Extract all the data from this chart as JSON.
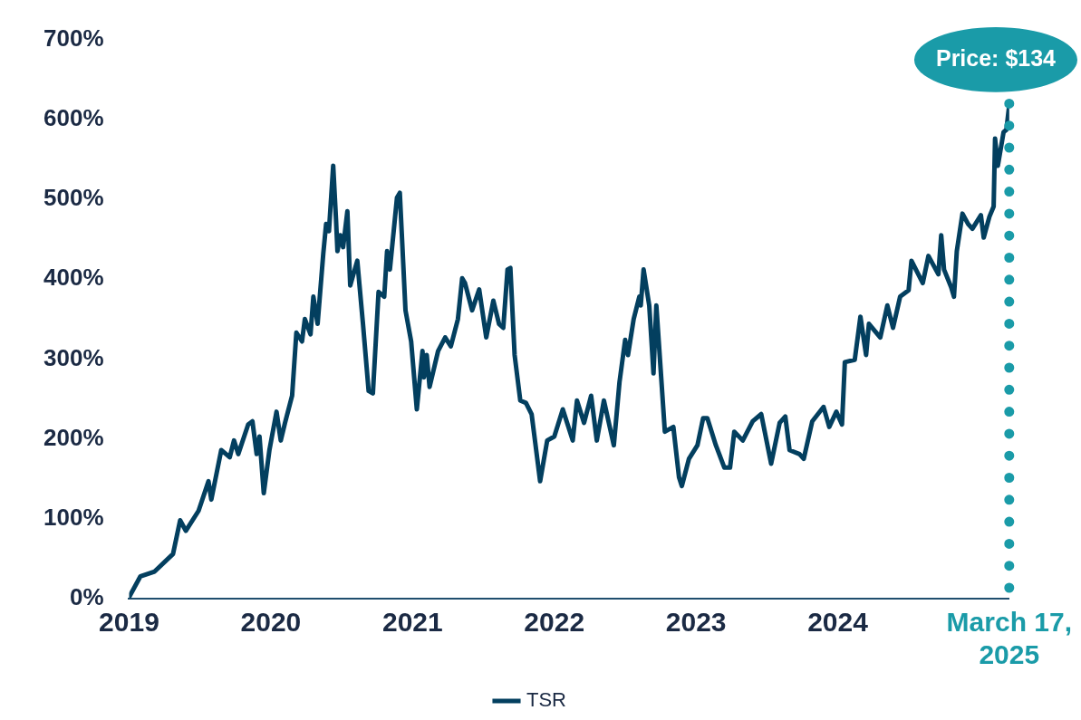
{
  "chart_data": {
    "type": "line",
    "x": [
      2019.0,
      2019.08,
      2019.18,
      2019.31,
      2019.36,
      2019.4,
      2019.49,
      2019.56,
      2019.58,
      2019.65,
      2019.71,
      2019.74,
      2019.77,
      2019.84,
      2019.87,
      2019.9,
      2019.92,
      2019.95,
      2019.99,
      2020.04,
      2020.07,
      2020.1,
      2020.15,
      2020.18,
      2020.22,
      2020.24,
      2020.28,
      2020.3,
      2020.33,
      2020.37,
      2020.39,
      2020.41,
      2020.44,
      2020.46,
      2020.47,
      2020.49,
      2020.51,
      2020.54,
      2020.56,
      2020.61,
      2020.65,
      2020.69,
      2020.72,
      2020.76,
      2020.8,
      2020.82,
      2020.84,
      2020.89,
      2020.91,
      2020.95,
      2020.99,
      2021.03,
      2021.07,
      2021.08,
      2021.1,
      2021.12,
      2021.18,
      2021.23,
      2021.27,
      2021.32,
      2021.35,
      2021.37,
      2021.42,
      2021.47,
      2021.52,
      2021.57,
      2021.61,
      2021.64,
      2021.67,
      2021.69,
      2021.72,
      2021.76,
      2021.8,
      2021.84,
      2021.9,
      2021.95,
      2022.0,
      2022.06,
      2022.13,
      2022.16,
      2022.21,
      2022.26,
      2022.3,
      2022.35,
      2022.42,
      2022.46,
      2022.5,
      2022.52,
      2022.56,
      2022.6,
      2022.61,
      2022.63,
      2022.67,
      2022.7,
      2022.72,
      2022.75,
      2022.78,
      2022.84,
      2022.88,
      2022.9,
      2022.95,
      2023.01,
      2023.05,
      2023.08,
      2023.14,
      2023.2,
      2023.24,
      2023.27,
      2023.33,
      2023.4,
      2023.46,
      2023.53,
      2023.59,
      2023.63,
      2023.66,
      2023.73,
      2023.76,
      2023.82,
      2023.9,
      2023.94,
      2023.99,
      2024.03,
      2024.05,
      2024.12,
      2024.16,
      2024.2,
      2024.22,
      2024.3,
      2024.35,
      2024.39,
      2024.44,
      2024.5,
      2024.52,
      2024.6,
      2024.64,
      2024.71,
      2024.73,
      2024.75,
      2024.8,
      2024.82,
      2024.84,
      2024.88,
      2024.92,
      2024.95,
      2025.01,
      2025.03,
      2025.07,
      2025.1,
      2025.11,
      2025.13,
      2025.17,
      2025.19,
      2025.21
    ],
    "series": [
      {
        "name": "TSR",
        "color": "#033f5f",
        "values": [
          2,
          28,
          34,
          56,
          98,
          85,
          110,
          147,
          124,
          186,
          177,
          198,
          181,
          218,
          222,
          181,
          203,
          132,
          186,
          234,
          198,
          220,
          254,
          333,
          322,
          350,
          331,
          378,
          344,
          432,
          469,
          460,
          542,
          474,
          435,
          455,
          440,
          485,
          392,
          423,
          344,
          260,
          257,
          384,
          378,
          435,
          412,
          502,
          508,
          361,
          322,
          237,
          310,
          277,
          305,
          265,
          310,
          327,
          316,
          350,
          401,
          395,
          361,
          387,
          327,
          373,
          344,
          339,
          412,
          414,
          305,
          248,
          245,
          231,
          147,
          198,
          203,
          237,
          198,
          248,
          220,
          254,
          198,
          248,
          192,
          271,
          324,
          305,
          350,
          378,
          367,
          412,
          367,
          282,
          367,
          288,
          209,
          215,
          152,
          141,
          175,
          192,
          226,
          226,
          192,
          164,
          164,
          209,
          198,
          222,
          231,
          169,
          220,
          228,
          186,
          181,
          175,
          222,
          240,
          215,
          234,
          218,
          296,
          299,
          353,
          305,
          344,
          327,
          367,
          339,
          378,
          386,
          423,
          395,
          429,
          406,
          455,
          412,
          390,
          378,
          435,
          482,
          469,
          463,
          480,
          452,
          478,
          491,
          576,
          542,
          584,
          587,
          618
        ]
      }
    ],
    "xlim": [
      2019,
      2025.21
    ],
    "xticks": [
      2019,
      2020,
      2021,
      2022,
      2023,
      2024,
      {
        "value": 2025.21,
        "label": "March 17, 2025"
      }
    ],
    "ylim": [
      0,
      700
    ],
    "yticks": [
      {
        "value": 0,
        "label": "0%"
      },
      {
        "value": 100,
        "label": "100%"
      },
      {
        "value": 200,
        "label": "200%"
      },
      {
        "value": 300,
        "label": "300%"
      },
      {
        "value": 400,
        "label": "400%"
      },
      {
        "value": 500,
        "label": "500%"
      },
      {
        "value": 600,
        "label": "600%"
      },
      {
        "value": 700,
        "label": "700%"
      }
    ],
    "ref_lines": [
      {
        "axis": "x",
        "value": 2025.21,
        "color": "#1a9ba8",
        "line_style": "dotted"
      }
    ],
    "annotations": [
      {
        "text": "Price: $134",
        "x": 2025.21,
        "y": 618
      }
    ],
    "grid": false,
    "legend": "bottom",
    "marker": "none",
    "line_style": "solid"
  }
}
